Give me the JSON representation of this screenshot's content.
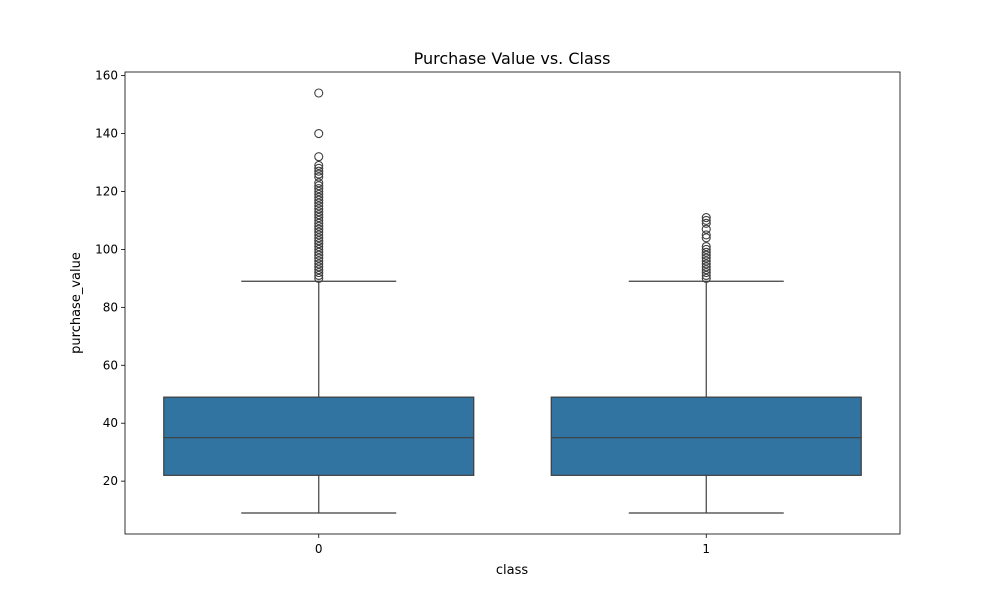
{
  "chart_data": {
    "type": "box",
    "title": "Purchase Value vs. Class",
    "xlabel": "class",
    "ylabel": "purchase_value",
    "categories": [
      "0",
      "1"
    ],
    "ylim": [
      1.75,
      161.25
    ],
    "yticks": [
      20,
      40,
      60,
      80,
      100,
      120,
      140,
      160
    ],
    "grid": false,
    "colors": {
      "box_fill": "#3274a1",
      "line": "#3f3f3f"
    },
    "boxes": [
      {
        "category": "0",
        "whisker_low": 9,
        "q1": 22,
        "median": 35,
        "q3": 49,
        "whisker_high": 89,
        "outliers": [
          154,
          140,
          132,
          129,
          128,
          127,
          126,
          125,
          123,
          122,
          121,
          120,
          119,
          118,
          117,
          116,
          115,
          114,
          113,
          112,
          111,
          110,
          109,
          108,
          107,
          106,
          105,
          104,
          103,
          102,
          101,
          100,
          99,
          98,
          97,
          96,
          95,
          94,
          93,
          92,
          91,
          90
        ]
      },
      {
        "category": "1",
        "whisker_low": 9,
        "q1": 22,
        "median": 35,
        "q3": 49,
        "whisker_high": 89,
        "outliers": [
          111,
          110,
          109,
          107,
          105,
          104,
          101,
          100,
          99,
          98,
          97,
          96,
          95,
          94,
          93,
          92,
          91,
          90
        ]
      }
    ]
  }
}
